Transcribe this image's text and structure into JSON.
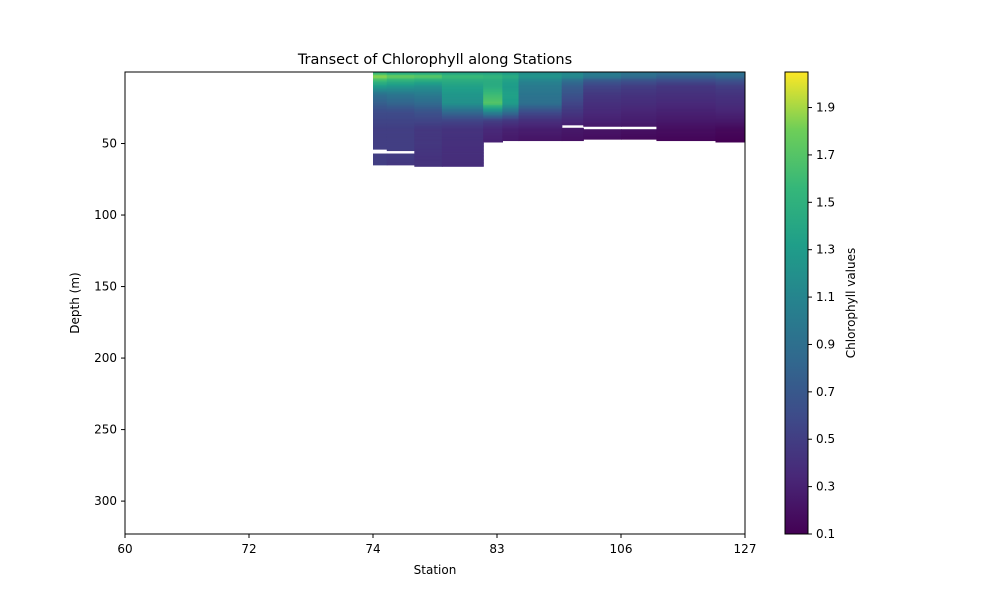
{
  "chart_data": {
    "type": "heatmap",
    "title": "Transect of Chlorophyll along Stations",
    "xlabel": "Station",
    "ylabel": "Depth (m)",
    "colorbar_label": "Chlorophyll values",
    "x_tick_labels": [
      "60",
      "72",
      "74",
      "83",
      "106",
      "127"
    ],
    "ylim": [
      323,
      0
    ],
    "y_ticks": [
      50,
      100,
      150,
      200,
      250,
      300
    ],
    "clim": [
      0.1,
      2.05
    ],
    "colorbar_ticks": [
      0.1,
      0.3,
      0.5,
      0.7,
      0.9,
      1.1,
      1.3,
      1.5,
      1.7,
      1.9
    ],
    "colorbar_tick_labels": [
      "0.1",
      "0.3",
      "0.5",
      "0.7",
      "0.9",
      "1.1",
      "1.3",
      "1.5",
      "1.7",
      "1.9"
    ],
    "colormap": "viridis",
    "grid": false,
    "profiles": [
      {
        "station_start": 74,
        "station_end": 75,
        "max_depth": 65,
        "values": [
          [
            0,
            1.4
          ],
          [
            3,
            1.9
          ],
          [
            6,
            1.6
          ],
          [
            10,
            1.3
          ],
          [
            16,
            0.9
          ],
          [
            22,
            0.75
          ],
          [
            28,
            0.6
          ],
          [
            34,
            0.55
          ],
          [
            40,
            0.5
          ],
          [
            50,
            0.5
          ],
          [
            54,
            0.5
          ],
          [
            56,
            null
          ],
          [
            57,
            0.5
          ],
          [
            65,
            0.5
          ]
        ]
      },
      {
        "station_start": 75,
        "station_end": 77,
        "max_depth": 65,
        "values": [
          [
            0,
            1.3
          ],
          [
            3,
            1.8
          ],
          [
            6,
            1.5
          ],
          [
            10,
            1.25
          ],
          [
            16,
            0.95
          ],
          [
            22,
            0.8
          ],
          [
            28,
            0.6
          ],
          [
            34,
            0.55
          ],
          [
            40,
            0.5
          ],
          [
            50,
            0.5
          ],
          [
            55,
            0.5
          ],
          [
            56,
            null
          ],
          [
            57,
            0.5
          ],
          [
            65,
            0.45
          ]
        ]
      },
      {
        "station_start": 77,
        "station_end": 79,
        "max_depth": 66,
        "values": [
          [
            0,
            1.3
          ],
          [
            3,
            1.75
          ],
          [
            6,
            1.45
          ],
          [
            10,
            1.2
          ],
          [
            16,
            1.0
          ],
          [
            22,
            0.85
          ],
          [
            28,
            0.65
          ],
          [
            34,
            0.55
          ],
          [
            40,
            0.45
          ],
          [
            50,
            0.45
          ],
          [
            60,
            0.42
          ],
          [
            66,
            0.42
          ]
        ]
      },
      {
        "station_start": 79,
        "station_end": 82,
        "max_depth": 66,
        "values": [
          [
            0,
            1.3
          ],
          [
            3,
            1.6
          ],
          [
            6,
            1.45
          ],
          [
            10,
            1.35
          ],
          [
            16,
            1.25
          ],
          [
            22,
            1.2
          ],
          [
            28,
            0.85
          ],
          [
            34,
            0.55
          ],
          [
            40,
            0.42
          ],
          [
            50,
            0.4
          ],
          [
            66,
            0.38
          ]
        ]
      },
      {
        "station_start": 82,
        "station_end": 84,
        "max_depth": 49,
        "values": [
          [
            0,
            1.3
          ],
          [
            3,
            1.55
          ],
          [
            6,
            1.45
          ],
          [
            10,
            1.45
          ],
          [
            16,
            1.6
          ],
          [
            22,
            1.7
          ],
          [
            28,
            1.1
          ],
          [
            34,
            0.5
          ],
          [
            40,
            0.35
          ],
          [
            49,
            0.3
          ]
        ]
      },
      {
        "station_start": 84,
        "station_end": 87,
        "max_depth": 48,
        "values": [
          [
            0,
            1.25
          ],
          [
            3,
            1.45
          ],
          [
            6,
            1.35
          ],
          [
            10,
            1.3
          ],
          [
            16,
            1.35
          ],
          [
            22,
            1.3
          ],
          [
            28,
            0.9
          ],
          [
            34,
            0.45
          ],
          [
            40,
            0.3
          ],
          [
            48,
            0.25
          ]
        ]
      },
      {
        "station_start": 87,
        "station_end": 95,
        "max_depth": 48,
        "values": [
          [
            0,
            1.15
          ],
          [
            3,
            1.25
          ],
          [
            6,
            1.1
          ],
          [
            10,
            1.0
          ],
          [
            16,
            0.95
          ],
          [
            22,
            0.9
          ],
          [
            28,
            0.6
          ],
          [
            34,
            0.4
          ],
          [
            40,
            0.28
          ],
          [
            48,
            0.22
          ]
        ]
      },
      {
        "station_start": 95,
        "station_end": 99,
        "max_depth": 48,
        "values": [
          [
            0,
            1.1
          ],
          [
            3,
            1.15
          ],
          [
            6,
            0.9
          ],
          [
            10,
            0.75
          ],
          [
            16,
            0.65
          ],
          [
            22,
            0.55
          ],
          [
            28,
            0.45
          ],
          [
            34,
            0.35
          ],
          [
            37,
            0.3
          ],
          [
            38,
            null
          ],
          [
            39,
            0.25
          ],
          [
            48,
            0.2
          ]
        ]
      },
      {
        "station_start": 99,
        "station_end": 106,
        "max_depth": 47,
        "values": [
          [
            0,
            1.0
          ],
          [
            3,
            1.0
          ],
          [
            6,
            0.7
          ],
          [
            10,
            0.55
          ],
          [
            16,
            0.45
          ],
          [
            22,
            0.4
          ],
          [
            28,
            0.35
          ],
          [
            34,
            0.3
          ],
          [
            38,
            0.25
          ],
          [
            39,
            null
          ],
          [
            40,
            0.22
          ],
          [
            47,
            0.18
          ]
        ]
      },
      {
        "station_start": 106,
        "station_end": 112,
        "max_depth": 47,
        "values": [
          [
            0,
            0.95
          ],
          [
            3,
            0.9
          ],
          [
            6,
            0.65
          ],
          [
            10,
            0.5
          ],
          [
            16,
            0.42
          ],
          [
            22,
            0.38
          ],
          [
            28,
            0.32
          ],
          [
            34,
            0.28
          ],
          [
            38,
            0.24
          ],
          [
            39,
            null
          ],
          [
            40,
            0.2
          ],
          [
            47,
            0.15
          ]
        ]
      },
      {
        "station_start": 112,
        "station_end": 122,
        "max_depth": 48,
        "values": [
          [
            0,
            0.9
          ],
          [
            3,
            0.8
          ],
          [
            6,
            0.6
          ],
          [
            10,
            0.45
          ],
          [
            16,
            0.4
          ],
          [
            22,
            0.35
          ],
          [
            28,
            0.3
          ],
          [
            34,
            0.25
          ],
          [
            40,
            0.18
          ],
          [
            48,
            0.13
          ]
        ]
      },
      {
        "station_start": 122,
        "station_end": 127,
        "max_depth": 49,
        "values": [
          [
            0,
            0.95
          ],
          [
            3,
            0.85
          ],
          [
            6,
            0.65
          ],
          [
            10,
            0.5
          ],
          [
            16,
            0.42
          ],
          [
            22,
            0.38
          ],
          [
            28,
            0.32
          ],
          [
            34,
            0.25
          ],
          [
            40,
            0.15
          ],
          [
            49,
            0.1
          ]
        ]
      }
    ]
  }
}
